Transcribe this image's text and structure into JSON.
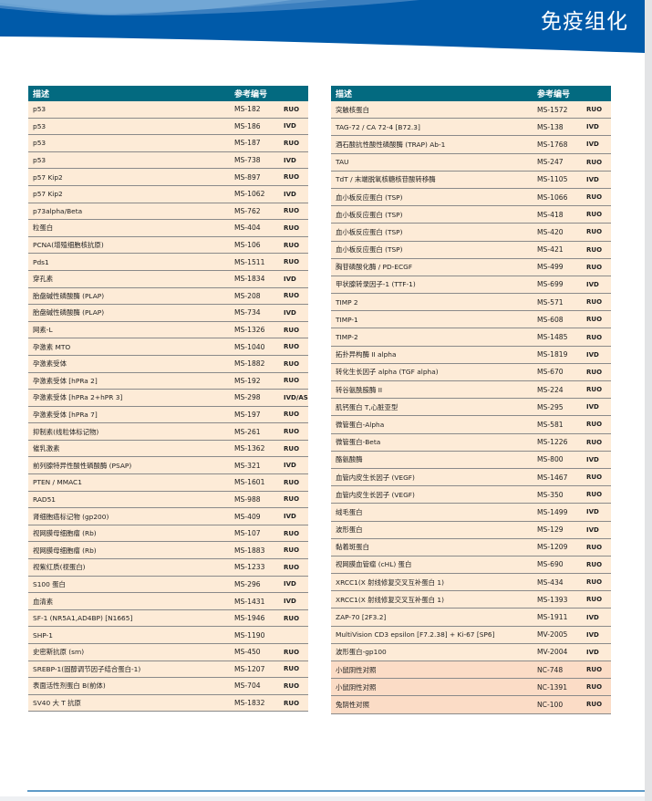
{
  "header": {
    "title": "免疫组化",
    "colors": {
      "banner_dark": "#005aa9",
      "banner_mid": "#3b7fbf",
      "banner_light": "#6aa2d2"
    }
  },
  "table_style": {
    "header_bg": "#036a80",
    "row_bg": "#fdebd7",
    "control_row_bg": "#fbdcc6"
  },
  "left_table": {
    "columns": [
      "描述",
      "参考编号",
      ""
    ],
    "rows": [
      {
        "desc": "p53",
        "ref": "MS-182",
        "cls": "RUO"
      },
      {
        "desc": "p53",
        "ref": "MS-186",
        "cls": "IVD"
      },
      {
        "desc": "p53",
        "ref": "MS-187",
        "cls": "RUO"
      },
      {
        "desc": "p53",
        "ref": "MS-738",
        "cls": "IVD"
      },
      {
        "desc": "p57 Kip2",
        "ref": "MS-897",
        "cls": "RUO"
      },
      {
        "desc": "p57 Kip2",
        "ref": "MS-1062",
        "cls": "IVD"
      },
      {
        "desc": "p73alpha/Beta",
        "ref": "MS-762",
        "cls": "RUO"
      },
      {
        "desc": "粒蛋白",
        "ref": "MS-404",
        "cls": "RUO"
      },
      {
        "desc": "PCNA(增殖细胞核抗原)",
        "ref": "MS-106",
        "cls": "RUO"
      },
      {
        "desc": "Pds1",
        "ref": "MS-1511",
        "cls": "RUO"
      },
      {
        "desc": "穿孔素",
        "ref": "MS-1834",
        "cls": "IVD"
      },
      {
        "desc": "胎盘碱性磷酸酶 (PLAP)",
        "ref": "MS-208",
        "cls": "RUO"
      },
      {
        "desc": "胎盘碱性磷酸酶 (PLAP)",
        "ref": "MS-734",
        "cls": "IVD"
      },
      {
        "desc": "网素-L",
        "ref": "MS-1326",
        "cls": "RUO"
      },
      {
        "desc": "孕激素 MTO",
        "ref": "MS-1040",
        "cls": "RUO"
      },
      {
        "desc": "孕激素受体",
        "ref": "MS-1882",
        "cls": "RUO"
      },
      {
        "desc": "孕激素受体 [hPRa 2]",
        "ref": "MS-192",
        "cls": "RUO"
      },
      {
        "desc": "孕激素受体 [hPRa 2+hPR 3]",
        "ref": "MS-298",
        "cls": "IVD/ASR"
      },
      {
        "desc": "孕激素受体 [hPRa 7]",
        "ref": "MS-197",
        "cls": "RUO"
      },
      {
        "desc": "抑制素(线粒体标记物)",
        "ref": "MS-261",
        "cls": "RUO"
      },
      {
        "desc": "催乳激素",
        "ref": "MS-1362",
        "cls": "RUO"
      },
      {
        "desc": "前列腺特异性酸性磷酸酶 (PSAP)",
        "ref": "MS-321",
        "cls": "IVD"
      },
      {
        "desc": "PTEN / MMAC1",
        "ref": "MS-1601",
        "cls": "RUO"
      },
      {
        "desc": "RAD51",
        "ref": "MS-988",
        "cls": "RUO"
      },
      {
        "desc": "肾细胞癌标记物 (gp200)",
        "ref": "MS-409",
        "cls": "IVD"
      },
      {
        "desc": "视网膜母细胞瘤 (Rb)",
        "ref": "MS-107",
        "cls": "RUO"
      },
      {
        "desc": "视网膜母细胞瘤 (Rb)",
        "ref": "MS-1883",
        "cls": "RUO"
      },
      {
        "desc": "视紫红质(视蛋白)",
        "ref": "MS-1233",
        "cls": "RUO"
      },
      {
        "desc": "S100 蛋白",
        "ref": "MS-296",
        "cls": "IVD"
      },
      {
        "desc": "血清素",
        "ref": "MS-1431",
        "cls": "IVD"
      },
      {
        "desc": "SF-1 (NR5A1,AD4BP) [N1665]",
        "ref": "MS-1946",
        "cls": "RUO"
      },
      {
        "desc": "SHP-1",
        "ref": "MS-1190",
        "cls": ""
      },
      {
        "desc": "史密斯抗原 (sm)",
        "ref": "MS-450",
        "cls": "RUO"
      },
      {
        "desc": "SREBP-1(固醇调节因子结合蛋白-1)",
        "ref": "MS-1207",
        "cls": "RUO"
      },
      {
        "desc": "表面活性剂蛋白 B(前体)",
        "ref": "MS-704",
        "cls": "RUO"
      },
      {
        "desc": "SV40 大 T 抗原",
        "ref": "MS-1832",
        "cls": "RUO"
      }
    ]
  },
  "right_table": {
    "columns": [
      "描述",
      "参考编号",
      ""
    ],
    "rows": [
      {
        "desc": "突触核蛋白",
        "ref": "MS-1572",
        "cls": "RUO"
      },
      {
        "desc": "TAG-72 / CA 72-4 [B72.3]",
        "ref": "MS-138",
        "cls": "IVD"
      },
      {
        "desc": "酒石酸抗性酸性磷酸酶 (TRAP) Ab-1",
        "ref": "MS-1768",
        "cls": "IVD"
      },
      {
        "desc": "TAU",
        "ref": "MS-247",
        "cls": "RUO"
      },
      {
        "desc": "TdT / 末端脱氧核糖核苷酸转移酶",
        "ref": "MS-1105",
        "cls": "IVD"
      },
      {
        "desc": "血小板反应蛋白 (TSP)",
        "ref": "MS-1066",
        "cls": "RUO"
      },
      {
        "desc": "血小板反应蛋白 (TSP)",
        "ref": "MS-418",
        "cls": "RUO"
      },
      {
        "desc": "血小板反应蛋白 (TSP)",
        "ref": "MS-420",
        "cls": "RUO"
      },
      {
        "desc": "血小板反应蛋白 (TSP)",
        "ref": "MS-421",
        "cls": "RUO"
      },
      {
        "desc": "胸苷磷酸化酶 / PD-ECGF",
        "ref": "MS-499",
        "cls": "RUO"
      },
      {
        "desc": "甲状腺转录因子-1 (TTF-1)",
        "ref": "MS-699",
        "cls": "IVD"
      },
      {
        "desc": "TIMP 2",
        "ref": "MS-571",
        "cls": "RUO"
      },
      {
        "desc": "TIMP-1",
        "ref": "MS-608",
        "cls": "RUO"
      },
      {
        "desc": "TIMP-2",
        "ref": "MS-1485",
        "cls": "RUO"
      },
      {
        "desc": "拓扑异构酶 II alpha",
        "ref": "MS-1819",
        "cls": "IVD"
      },
      {
        "desc": "转化生长因子 alpha (TGF alpha)",
        "ref": "MS-670",
        "cls": "RUO"
      },
      {
        "desc": "转谷氨酰胺酶 II",
        "ref": "MS-224",
        "cls": "RUO"
      },
      {
        "desc": "肌钙蛋白 T,心脏亚型",
        "ref": "MS-295",
        "cls": "IVD"
      },
      {
        "desc": "微管蛋白-Alpha",
        "ref": "MS-581",
        "cls": "RUO"
      },
      {
        "desc": "微管蛋白-Beta",
        "ref": "MS-1226",
        "cls": "RUO"
      },
      {
        "desc": "酪氨酸酶",
        "ref": "MS-800",
        "cls": "IVD"
      },
      {
        "desc": "血管内皮生长因子 (VEGF)",
        "ref": "MS-1467",
        "cls": "RUO"
      },
      {
        "desc": "血管内皮生长因子 (VEGF)",
        "ref": "MS-350",
        "cls": "RUO"
      },
      {
        "desc": "绒毛蛋白",
        "ref": "MS-1499",
        "cls": "IVD"
      },
      {
        "desc": "波形蛋白",
        "ref": "MS-129",
        "cls": "IVD"
      },
      {
        "desc": "黏着斑蛋白",
        "ref": "MS-1209",
        "cls": "RUO"
      },
      {
        "desc": "视网膜血管瘤 (cHL) 蛋白",
        "ref": "MS-690",
        "cls": "RUO"
      },
      {
        "desc": "XRCC1(X 射线修复交叉互补蛋白 1)",
        "ref": "MS-434",
        "cls": "RUO"
      },
      {
        "desc": "XRCC1(X 射线修复交叉互补蛋白 1)",
        "ref": "MS-1393",
        "cls": "RUO"
      },
      {
        "desc": "ZAP-70 [2F3.2]",
        "ref": "MS-1911",
        "cls": "IVD"
      },
      {
        "desc": "MultiVision CD3 epsilon [F7.2.38] + Ki-67 [SP6]",
        "ref": "MV-2005",
        "cls": "IVD"
      },
      {
        "desc": "波形蛋白-gp100",
        "ref": "MV-2004",
        "cls": "IVD"
      },
      {
        "desc": "小鼠阴性对照",
        "ref": "NC-748",
        "cls": "RUO",
        "control": true
      },
      {
        "desc": "小鼠阴性对照",
        "ref": "NC-1391",
        "cls": "RUO",
        "control": true
      },
      {
        "desc": "兔阴性对照",
        "ref": "NC-100",
        "cls": "RUO",
        "control": true
      }
    ]
  }
}
